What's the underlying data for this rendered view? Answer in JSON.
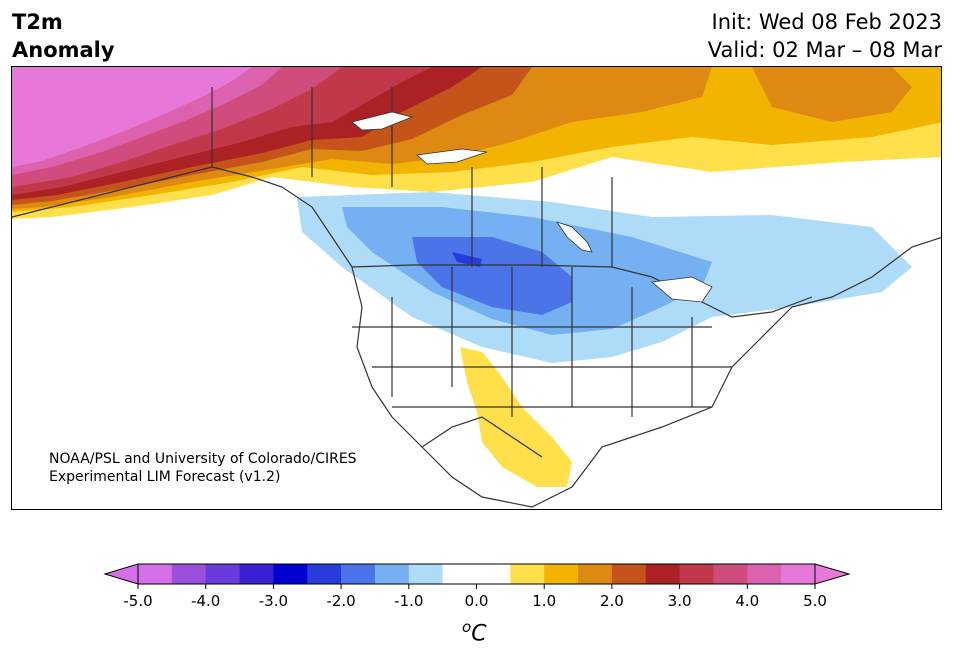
{
  "title": {
    "line1": "T2m",
    "line2": "Anomaly"
  },
  "info": {
    "init": "Init: Wed 08 Feb 2023",
    "valid": "Valid: 02 Mar – 08 Mar"
  },
  "credit": {
    "line1": "NOAA/PSL and University of Colorado/CIRES",
    "line2": "Experimental LIM Forecast (v1.2)"
  },
  "colorbar": {
    "unit_base": "C",
    "unit_sup": "o",
    "ticks": [
      "-5.0",
      "-4.0",
      "-3.0",
      "-2.0",
      "-1.0",
      "0.0",
      "1.0",
      "2.0",
      "3.0",
      "4.0",
      "5.0"
    ],
    "colors": [
      "#d570e8",
      "#9a50dc",
      "#6a3bdc",
      "#3a20d4",
      "#0000d0",
      "#2a3bdc",
      "#4a74e8",
      "#74b0f2",
      "#aedbf8",
      "#ffffff",
      "#ffffff",
      "#ffe04a",
      "#f2b400",
      "#de8a12",
      "#c4541a",
      "#ac2224",
      "#c0384a",
      "#d04c7c",
      "#dc62b0",
      "#e878d8"
    ],
    "under_color": "#d570e8",
    "over_color": "#e878d8"
  }
}
